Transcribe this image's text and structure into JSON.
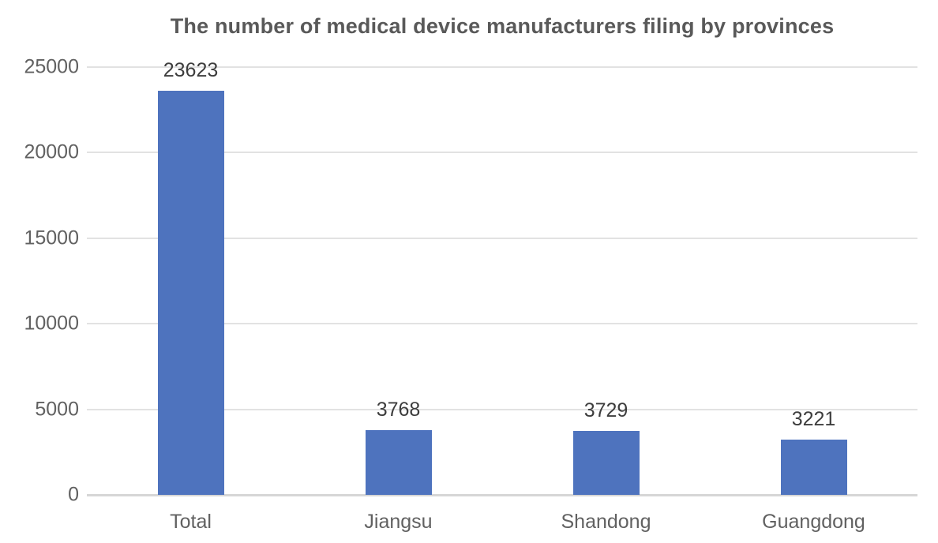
{
  "chart_data": {
    "type": "bar",
    "title": "The number of medical device manufacturers filing by provinces",
    "categories": [
      "Total",
      "Jiangsu",
      "Shandong",
      "Guangdong"
    ],
    "values": [
      23623,
      3768,
      3729,
      3221
    ],
    "data_labels": [
      "23623",
      "3768",
      "3729",
      "3221"
    ],
    "xlabel": "",
    "ylabel": "",
    "ylim": [
      0,
      25000
    ],
    "yticks": [
      0,
      5000,
      10000,
      15000,
      20000,
      25000
    ],
    "ytick_labels": [
      "0",
      "5000",
      "10000",
      "15000",
      "20000",
      "25000"
    ],
    "grid": "horizontal",
    "legend": "none",
    "colors": {
      "bar_fill": "#4e73be",
      "gridline": "#e2e2e2",
      "axis_line": "#d6d6d6",
      "title_text": "#595959",
      "tick_text": "#616161",
      "value_label_text": "#3d3d3d"
    }
  }
}
